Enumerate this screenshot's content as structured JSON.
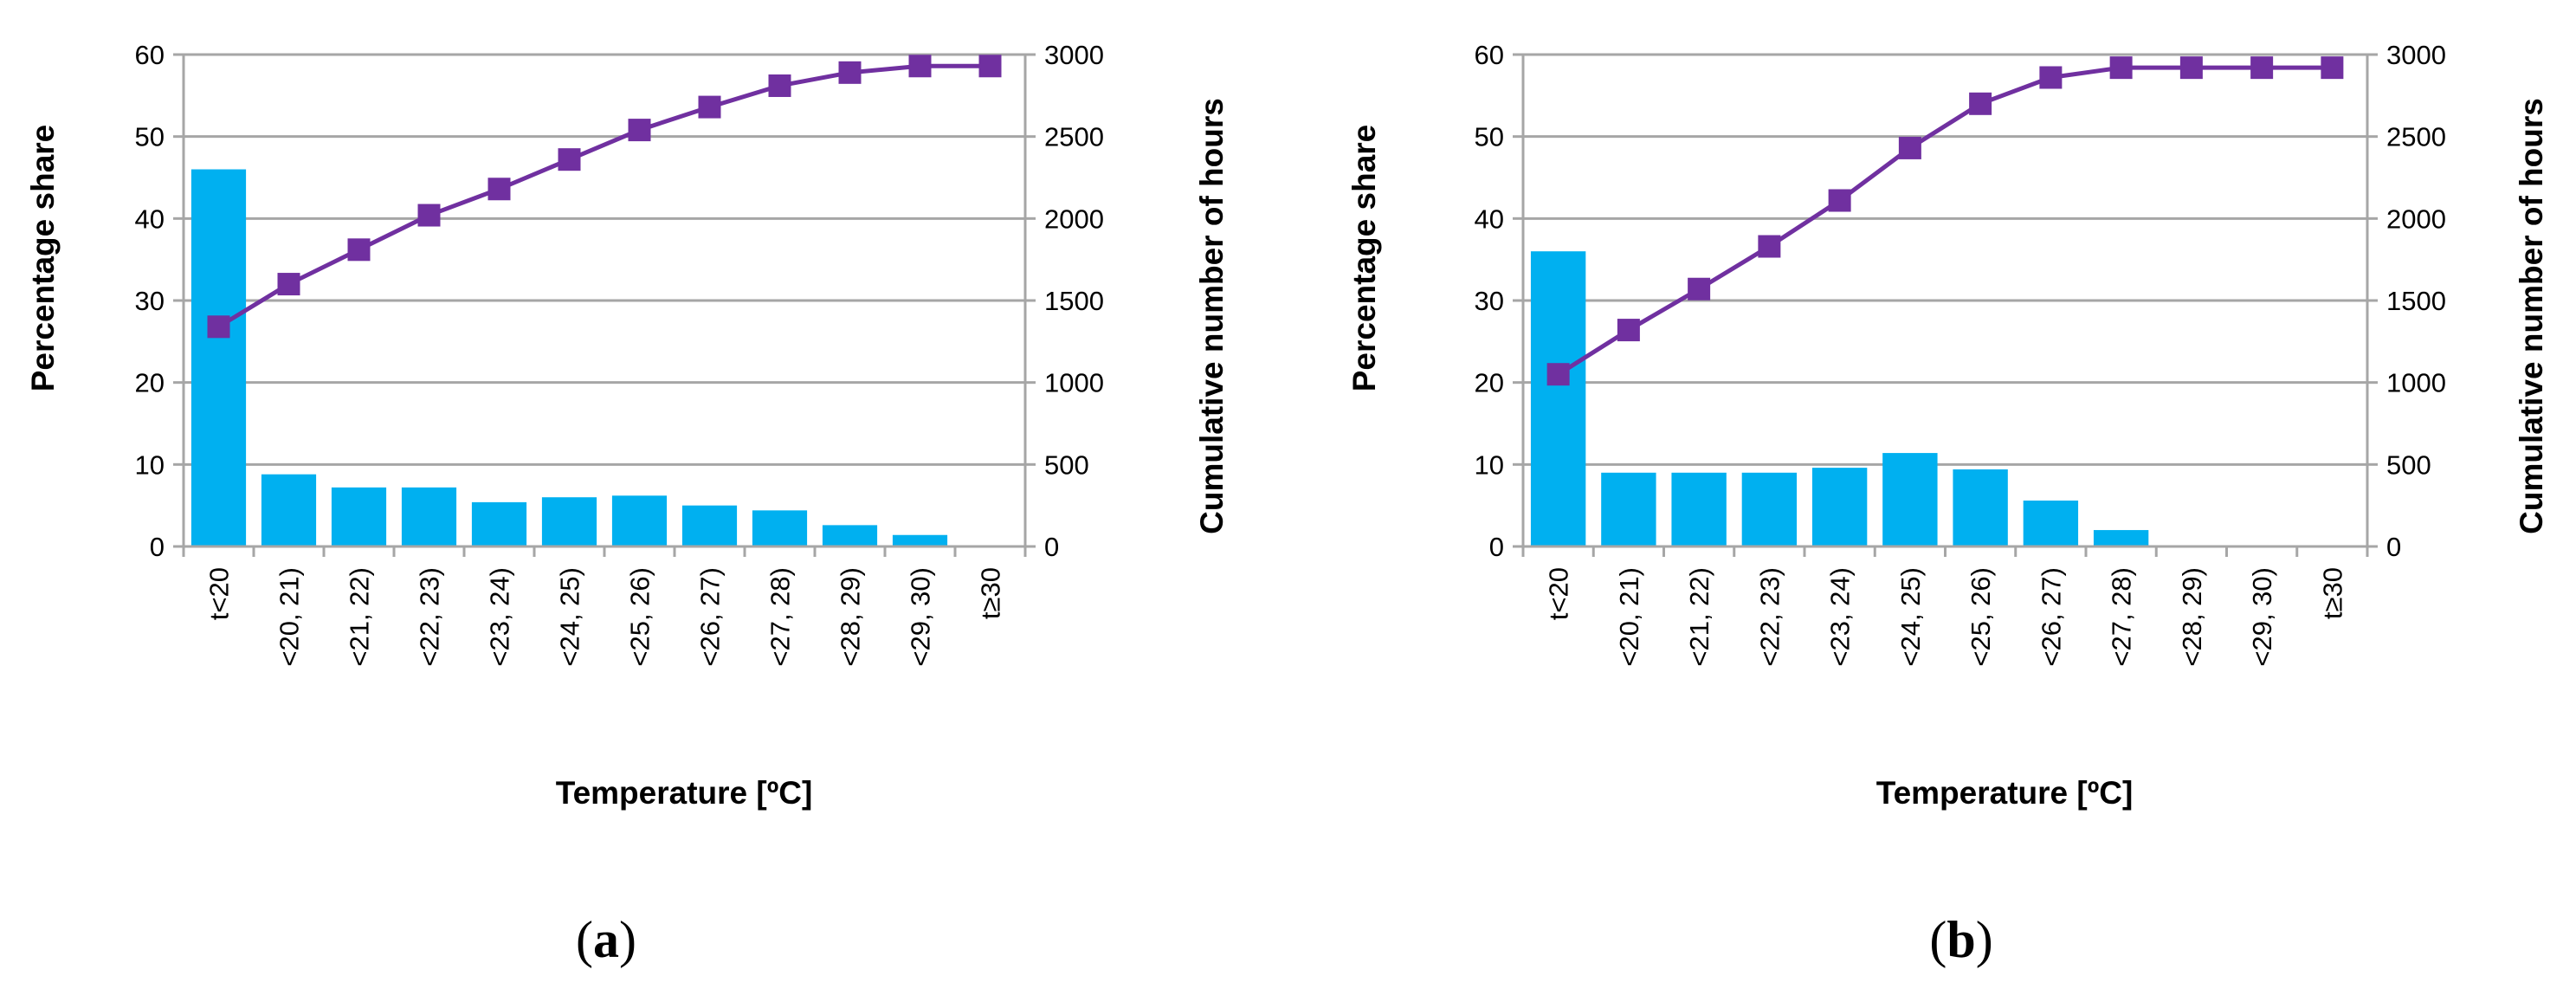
{
  "figure": {
    "colors": {
      "bar": "#00b0f0",
      "line": "#7030a0",
      "grid": "#a6a6a6",
      "axis": "#a6a6a6"
    }
  },
  "chart_data": [
    {
      "panel": "a",
      "panel_label": {
        "open": "(",
        "letter": "a",
        "close": ")"
      },
      "type": "bar",
      "categories": [
        "t<20",
        "<20, 21)",
        "<21, 22)",
        "<22, 23)",
        "<23, 24)",
        "<24, 25)",
        "<25, 26)",
        "<26, 27)",
        "<27, 28)",
        "<28, 29)",
        "<29, 30)",
        "t≥30"
      ],
      "xlabel": "Temperature [ºC]",
      "ylabel": "Percentage share",
      "ylabel_right": "Cumulative number of hours",
      "ylim": [
        0,
        60
      ],
      "ylim_right": [
        0,
        3000
      ],
      "yticks": [
        0,
        10,
        20,
        30,
        40,
        50,
        60
      ],
      "yticks_right": [
        0,
        500,
        1000,
        1500,
        2000,
        2500,
        3000
      ],
      "grid": true,
      "series": [
        {
          "name": "Percentage share",
          "type": "bar",
          "axis": "left",
          "values": [
            46,
            8.8,
            7.2,
            7.2,
            5.4,
            6.0,
            6.2,
            5.0,
            4.4,
            2.6,
            1.4,
            0
          ]
        },
        {
          "name": "Cumulative number of hours",
          "type": "line",
          "axis": "right",
          "values": [
            1340,
            1600,
            1810,
            2020,
            2180,
            2360,
            2540,
            2680,
            2810,
            2890,
            2930,
            2930
          ]
        }
      ]
    },
    {
      "panel": "b",
      "panel_label": {
        "open": "(",
        "letter": "b",
        "close": ")"
      },
      "type": "bar",
      "categories": [
        "t<20",
        "<20, 21)",
        "<21, 22)",
        "<22, 23)",
        "<23, 24)",
        "<24, 25)",
        "<25, 26)",
        "<26, 27)",
        "<27, 28)",
        "<28, 29)",
        "<29, 30)",
        "t≥30"
      ],
      "xlabel": "Temperature [ºC]",
      "ylabel": "Percentage share",
      "ylabel_right": "Cumulative number of hours",
      "ylim": [
        0,
        60
      ],
      "ylim_right": [
        0,
        3000
      ],
      "yticks": [
        0,
        10,
        20,
        30,
        40,
        50,
        60
      ],
      "yticks_right": [
        0,
        500,
        1000,
        1500,
        2000,
        2500,
        3000
      ],
      "grid": true,
      "series": [
        {
          "name": "Percentage share",
          "type": "bar",
          "axis": "left",
          "values": [
            36,
            9.0,
            9.0,
            9.0,
            9.6,
            11.4,
            9.4,
            5.6,
            2.0,
            0,
            0,
            0
          ]
        },
        {
          "name": "Cumulative number of hours",
          "type": "line",
          "axis": "right",
          "values": [
            1050,
            1320,
            1570,
            1830,
            2110,
            2430,
            2700,
            2860,
            2920,
            2920,
            2920,
            2920
          ]
        }
      ]
    }
  ]
}
